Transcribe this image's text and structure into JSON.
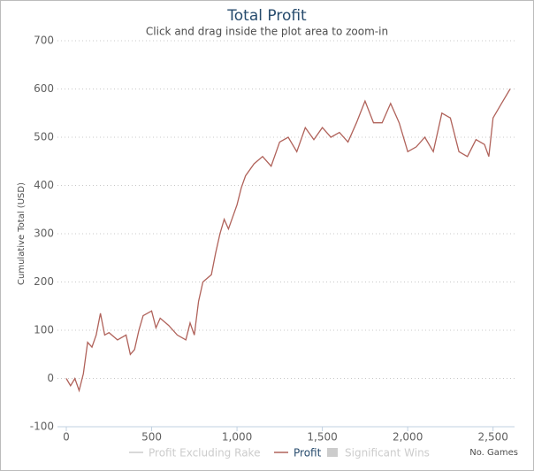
{
  "chart_data": {
    "type": "line",
    "title": "Total Profit",
    "subtitle": "Click and drag inside the plot area to zoom-in",
    "y_label": "Cumulative Total (USD)",
    "x_label": "No. Games",
    "x": [
      0,
      25,
      50,
      75,
      100,
      125,
      150,
      175,
      200,
      225,
      250,
      300,
      350,
      375,
      400,
      425,
      450,
      500,
      525,
      550,
      600,
      650,
      700,
      725,
      750,
      775,
      800,
      850,
      875,
      900,
      925,
      950,
      1000,
      1025,
      1050,
      1100,
      1150,
      1200,
      1250,
      1300,
      1350,
      1400,
      1450,
      1500,
      1550,
      1600,
      1650,
      1700,
      1750,
      1800,
      1850,
      1900,
      1950,
      2000,
      2050,
      2100,
      2150,
      2200,
      2250,
      2300,
      2350,
      2400,
      2450,
      2475,
      2500,
      2550,
      2600
    ],
    "series": [
      {
        "name": "Profit",
        "color": "#b0625a",
        "values": [
          0,
          -15,
          0,
          -25,
          10,
          75,
          65,
          90,
          135,
          90,
          95,
          80,
          90,
          50,
          60,
          100,
          130,
          140,
          105,
          125,
          110,
          90,
          80,
          115,
          90,
          160,
          200,
          215,
          260,
          300,
          330,
          310,
          360,
          395,
          420,
          445,
          460,
          440,
          490,
          500,
          470,
          520,
          495,
          520,
          500,
          510,
          490,
          530,
          575,
          530,
          530,
          570,
          530,
          470,
          480,
          500,
          470,
          550,
          540,
          470,
          460,
          495,
          485,
          460,
          540,
          570,
          600
        ]
      }
    ],
    "legend": [
      {
        "name": "Profit Excluding Rake",
        "color": "#cccccc",
        "visible": false
      },
      {
        "name": "Profit",
        "color": "#b0625a",
        "visible": true
      },
      {
        "name": "Significant Wins",
        "color": "#cccccc",
        "visible": false
      }
    ],
    "xlim": [
      0,
      2600
    ],
    "ylim": [
      -100,
      700
    ],
    "xticks": [
      0,
      500,
      {
        "value": 1000,
        "label": "1,000"
      },
      {
        "value": 1500,
        "label": "1,500"
      },
      {
        "value": 2000,
        "label": "2,000"
      },
      {
        "value": 2500,
        "label": "2,500"
      }
    ],
    "yticks": [
      -100,
      0,
      100,
      200,
      300,
      400,
      500,
      600,
      700
    ],
    "grid": true
  }
}
